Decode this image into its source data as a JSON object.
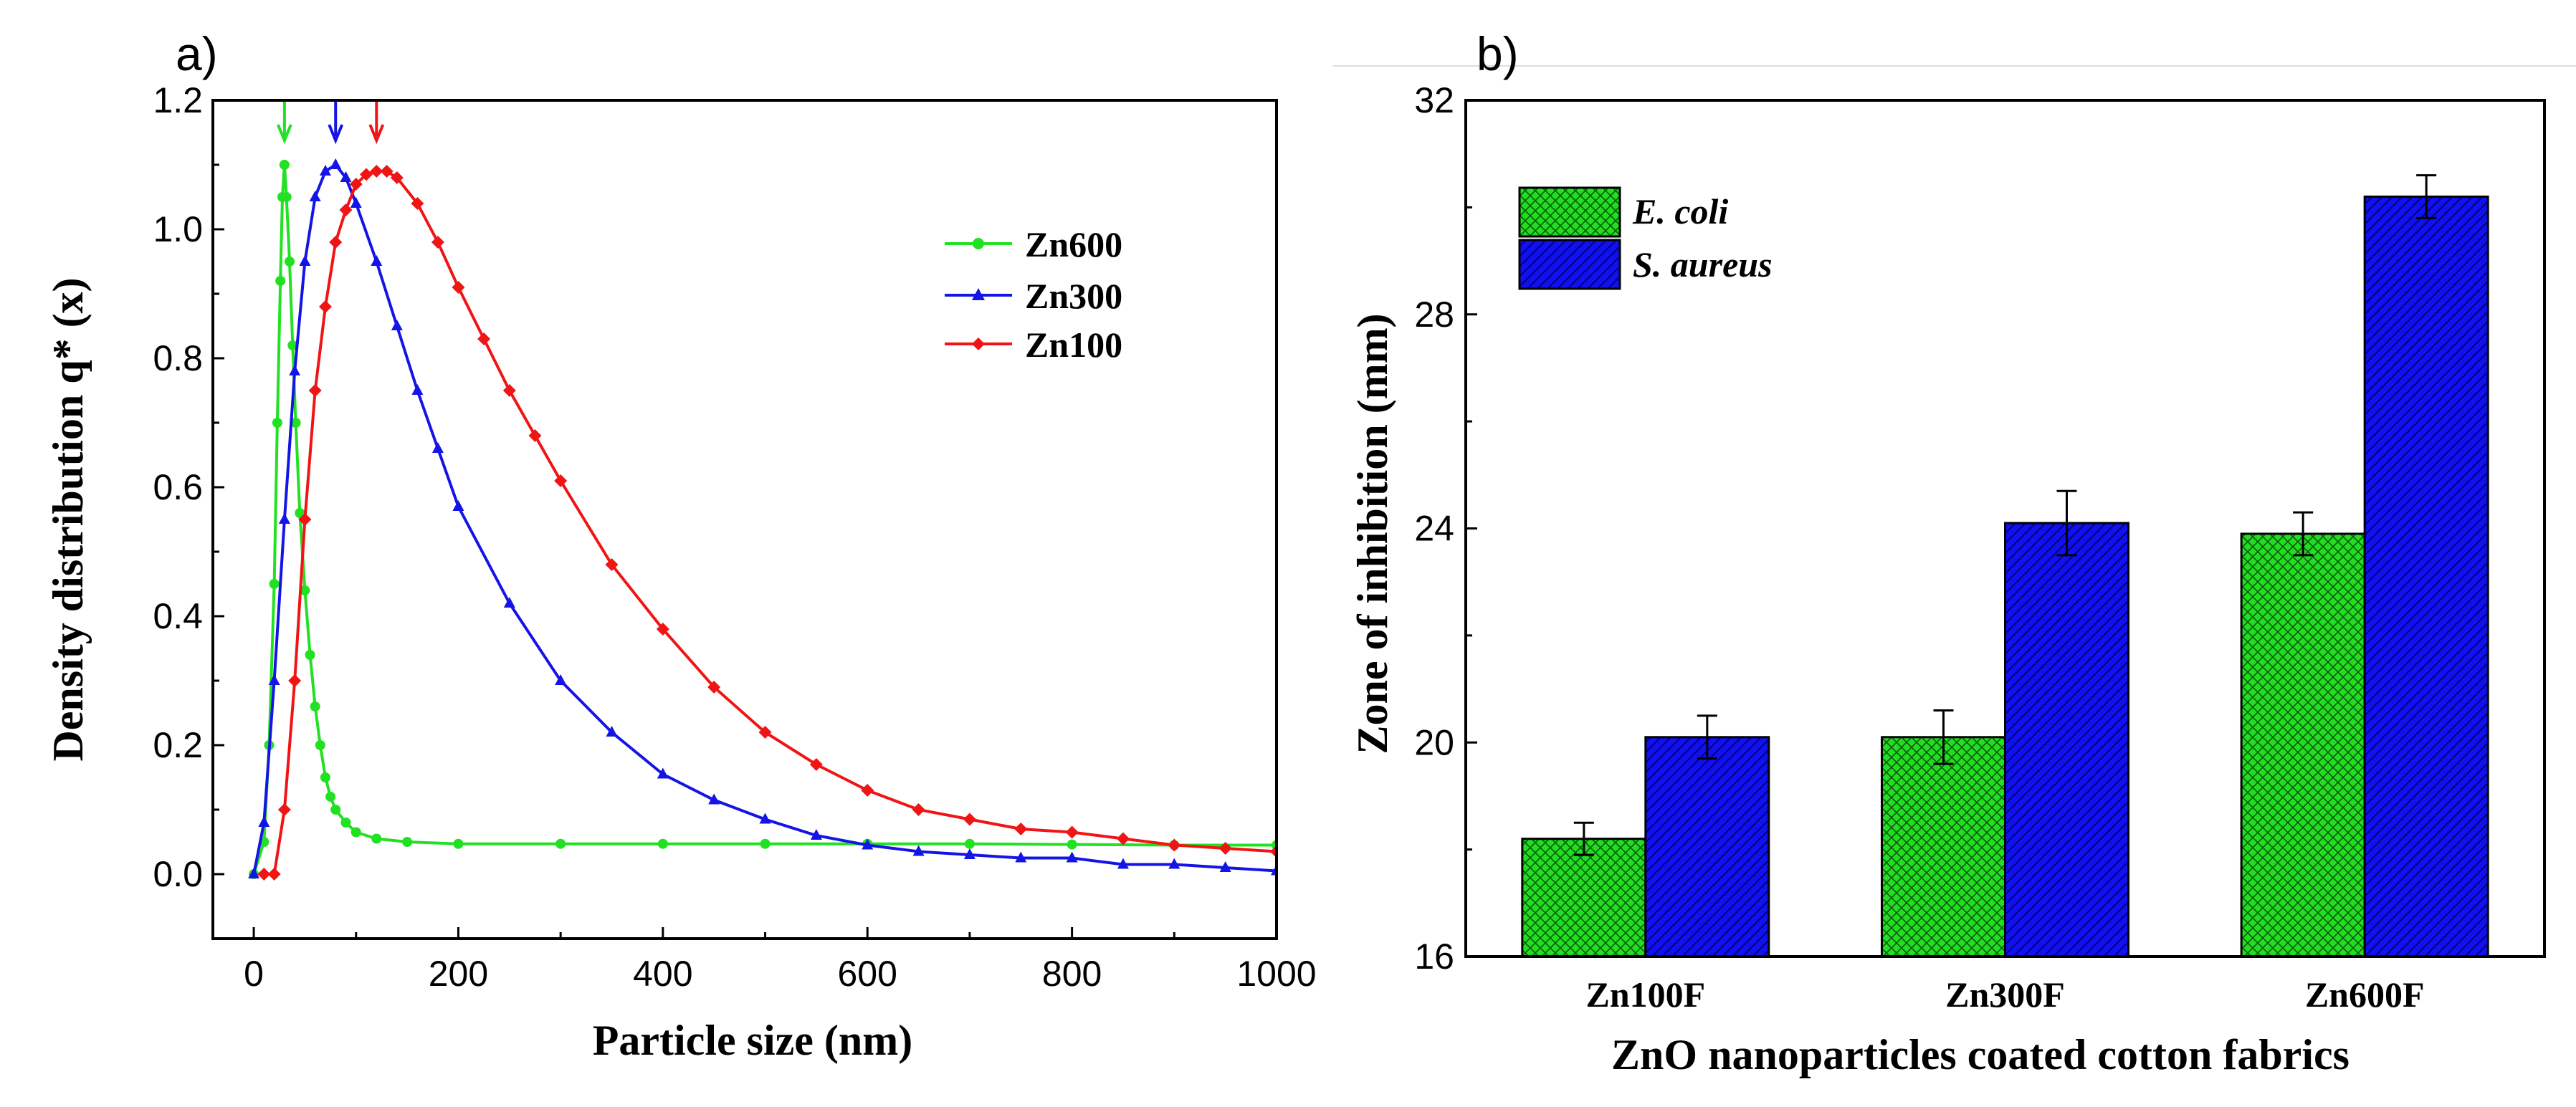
{
  "chart_data": [
    {
      "panel_label": "a)",
      "type": "line",
      "xlabel": "Particle size (nm)",
      "ylabel": "Density distribution q* (x)",
      "xlim": [
        -40,
        1000
      ],
      "ylim": [
        -0.1,
        1.2
      ],
      "xticks": [
        0,
        200,
        400,
        600,
        800,
        1000
      ],
      "yticks": [
        0.0,
        0.2,
        0.4,
        0.6,
        0.8,
        1.0,
        1.2
      ],
      "xtick_labels": [
        "0",
        "200",
        "400",
        "600",
        "800",
        "1000"
      ],
      "ytick_labels": [
        "0.0",
        "0.2",
        "0.4",
        "0.6",
        "0.8",
        "1.0",
        "1.2"
      ],
      "legend_position": "top-right",
      "series": [
        {
          "name": "Zn600",
          "color": "#22e022",
          "marker": "circle",
          "peak_x": 30,
          "x": [
            0,
            10,
            15,
            20,
            23,
            26,
            28,
            30,
            32,
            35,
            38,
            41,
            45,
            50,
            55,
            60,
            65,
            70,
            75,
            80,
            90,
            100,
            120,
            150,
            200,
            300,
            400,
            500,
            600,
            700,
            800,
            900,
            1000
          ],
          "y": [
            0.0,
            0.05,
            0.2,
            0.45,
            0.7,
            0.92,
            1.05,
            1.1,
            1.05,
            0.95,
            0.82,
            0.7,
            0.56,
            0.44,
            0.34,
            0.26,
            0.2,
            0.15,
            0.12,
            0.1,
            0.08,
            0.065,
            0.055,
            0.05,
            0.047,
            0.047,
            0.047,
            0.047,
            0.047,
            0.047,
            0.046,
            0.045,
            0.045
          ]
        },
        {
          "name": "Zn300",
          "color": "#1414e6",
          "marker": "triangle",
          "peak_x": 80,
          "x": [
            0,
            10,
            20,
            30,
            40,
            50,
            60,
            70,
            80,
            90,
            100,
            120,
            140,
            160,
            180,
            200,
            250,
            300,
            350,
            400,
            450,
            500,
            550,
            600,
            650,
            700,
            750,
            800,
            850,
            900,
            950,
            1000
          ],
          "y": [
            0.0,
            0.08,
            0.3,
            0.55,
            0.78,
            0.95,
            1.05,
            1.09,
            1.1,
            1.08,
            1.04,
            0.95,
            0.85,
            0.75,
            0.66,
            0.57,
            0.42,
            0.3,
            0.22,
            0.155,
            0.115,
            0.085,
            0.06,
            0.045,
            0.035,
            0.03,
            0.025,
            0.025,
            0.015,
            0.015,
            0.01,
            0.005
          ]
        },
        {
          "name": "Zn100",
          "color": "#f01414",
          "marker": "diamond",
          "peak_x": 120,
          "x": [
            10,
            20,
            30,
            40,
            50,
            60,
            70,
            80,
            90,
            100,
            110,
            120,
            130,
            140,
            160,
            180,
            200,
            225,
            250,
            275,
            300,
            350,
            400,
            450,
            500,
            550,
            600,
            650,
            700,
            750,
            800,
            850,
            900,
            950,
            1000
          ],
          "y": [
            0.0,
            0.0,
            0.1,
            0.3,
            0.55,
            0.75,
            0.88,
            0.98,
            1.03,
            1.07,
            1.085,
            1.09,
            1.09,
            1.08,
            1.04,
            0.98,
            0.91,
            0.83,
            0.75,
            0.68,
            0.61,
            0.48,
            0.38,
            0.29,
            0.22,
            0.17,
            0.13,
            0.1,
            0.085,
            0.07,
            0.065,
            0.055,
            0.045,
            0.04,
            0.035
          ]
        }
      ]
    },
    {
      "panel_label": "b)",
      "type": "bar",
      "xlabel": "ZnO nanoparticles coated cotton fabrics",
      "ylabel": "Zone of inhibition (mm)",
      "ylim": [
        16,
        32
      ],
      "yticks": [
        16,
        20,
        24,
        28,
        32
      ],
      "ytick_labels": [
        "16",
        "20",
        "24",
        "28",
        "32"
      ],
      "categories": [
        "Zn100F",
        "Zn300F",
        "Zn600F"
      ],
      "legend_position": "top-left",
      "series": [
        {
          "name": "E. coli",
          "color": "#22dd22",
          "pattern": "crosshatch",
          "values": [
            18.2,
            20.1,
            23.9
          ],
          "errors": [
            0.3,
            0.5,
            0.4
          ]
        },
        {
          "name": "S. aureus",
          "color": "#1010f0",
          "pattern": "diagonal-hatch",
          "values": [
            20.1,
            24.1,
            30.2
          ],
          "errors": [
            0.4,
            0.6,
            0.4
          ]
        }
      ]
    }
  ]
}
